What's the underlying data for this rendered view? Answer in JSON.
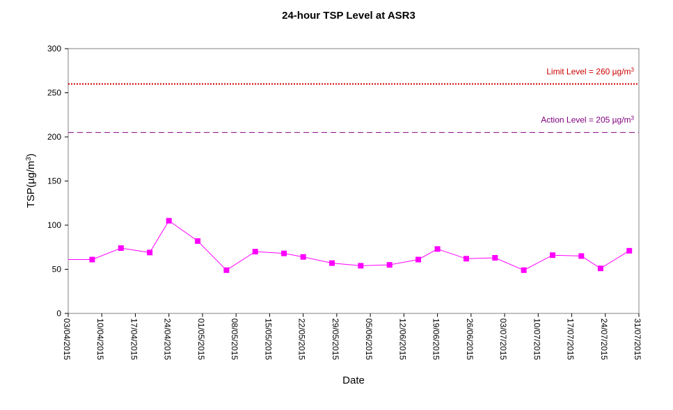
{
  "chart_data": {
    "type": "line",
    "title": "24-hour TSP Level at ASR3",
    "xlabel": "Date",
    "ylabel_prefix": "TSP(µg/m",
    "ylabel_sup": "3",
    "ylabel_suffix": ")",
    "ylim": [
      0,
      300
    ],
    "yticks": [
      0,
      50,
      100,
      150,
      200,
      250,
      300
    ],
    "x_start": "2015-04-03",
    "x_end": "2015-07-31",
    "xtick_labels": [
      "03/04/2015",
      "10/04/2015",
      "17/04/2015",
      "24/04/2015",
      "01/05/2015",
      "08/05/2015",
      "15/05/2015",
      "22/05/2015",
      "29/05/2015",
      "05/06/2015",
      "12/06/2015",
      "19/06/2015",
      "26/06/2015",
      "03/07/2015",
      "10/07/2015",
      "17/07/2015",
      "24/07/2015",
      "31/07/2015"
    ],
    "grid": false,
    "series": [
      {
        "color": "#ff00ff",
        "marker": "square",
        "points": [
          {
            "x": "2015-04-03",
            "y": 61,
            "marker": false
          },
          {
            "x": "2015-04-08",
            "y": 61
          },
          {
            "x": "2015-04-14",
            "y": 74
          },
          {
            "x": "2015-04-20",
            "y": 69
          },
          {
            "x": "2015-04-24",
            "y": 105
          },
          {
            "x": "2015-04-30",
            "y": 82
          },
          {
            "x": "2015-05-06",
            "y": 49
          },
          {
            "x": "2015-05-12",
            "y": 70
          },
          {
            "x": "2015-05-18",
            "y": 68
          },
          {
            "x": "2015-05-22",
            "y": 64
          },
          {
            "x": "2015-05-28",
            "y": 57
          },
          {
            "x": "2015-06-03",
            "y": 54
          },
          {
            "x": "2015-06-09",
            "y": 55
          },
          {
            "x": "2015-06-15",
            "y": 61
          },
          {
            "x": "2015-06-19",
            "y": 73
          },
          {
            "x": "2015-06-25",
            "y": 62
          },
          {
            "x": "2015-07-01",
            "y": 63
          },
          {
            "x": "2015-07-07",
            "y": 49
          },
          {
            "x": "2015-07-13",
            "y": 66
          },
          {
            "x": "2015-07-19",
            "y": 65
          },
          {
            "x": "2015-07-23",
            "y": 51
          },
          {
            "x": "2015-07-29",
            "y": 71
          }
        ]
      }
    ],
    "reference_lines": [
      {
        "label_prefix": "Limit Level  = 260 µg/m",
        "label_sup": "3",
        "y": 260,
        "color": "#cc0000",
        "style": "dotted"
      },
      {
        "label_prefix": "Action Level  = 205 µg/m",
        "label_sup": "3",
        "y": 205,
        "color": "#800080",
        "style": "dashed"
      }
    ]
  }
}
